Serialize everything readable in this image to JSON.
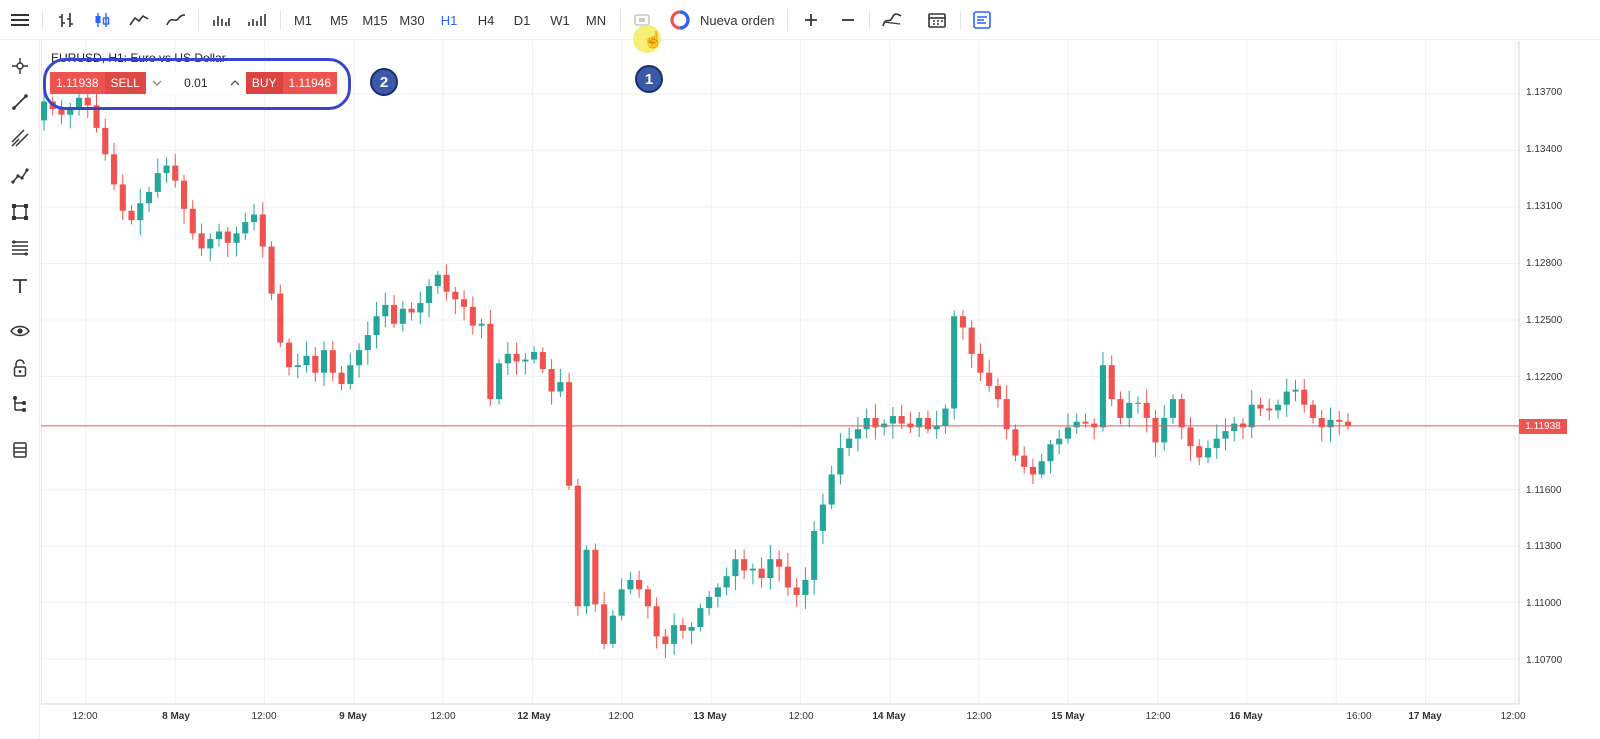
{
  "toolbar": {
    "timeframes": [
      "M1",
      "M5",
      "M15",
      "M30",
      "H1",
      "H4",
      "D1",
      "W1",
      "MN"
    ],
    "active_timeframe": "H1",
    "new_order_label": "Nueva orden"
  },
  "chart": {
    "symbol_title": "EURUSD, H1: Euro vs US Dollar",
    "price_axis": [
      "1.13700",
      "1.13400",
      "1.13100",
      "1.12800",
      "1.12500",
      "1.12200",
      "1.11600",
      "1.11300",
      "1.11000",
      "1.10700"
    ],
    "time_axis": [
      "12:00",
      "8 May",
      "12:00",
      "9 May",
      "12:00",
      "12 May",
      "12:00",
      "13 May",
      "12:00",
      "14 May",
      "12:00",
      "15 May",
      "12:00",
      "16 May",
      "16:00",
      "17 May",
      "12:00"
    ],
    "current_price": "1.11938",
    "colors": {
      "bull": "#26a69a",
      "bear": "#ef5350",
      "grid": "#f2f3f5",
      "accent": "#2962ff"
    }
  },
  "order_panel": {
    "sell_price": "1.11938",
    "sell_label": "SELL",
    "volume": "0.01",
    "buy_label": "BUY",
    "buy_price": "1.11946"
  },
  "annotations": {
    "step_1": "1",
    "step_2": "2"
  },
  "chart_data": {
    "type": "candlestick",
    "title": "EURUSD, H1: Euro vs US Dollar",
    "x_ticks": [
      "12:00",
      "8 May",
      "12:00",
      "9 May",
      "12:00",
      "12 May",
      "12:00",
      "13 May",
      "12:00",
      "14 May",
      "12:00",
      "15 May",
      "12:00",
      "16 May",
      "16:00",
      "17 May",
      "12:00"
    ],
    "y_ticks": [
      1.137,
      1.134,
      1.131,
      1.128,
      1.125,
      1.122,
      1.116,
      1.113,
      1.11,
      1.107
    ],
    "ylim": [
      1.1052,
      1.1388
    ],
    "current_price": 1.11938,
    "grid": true,
    "close_path": [
      1.1366,
      1.1362,
      1.1359,
      1.1363,
      1.1368,
      1.1364,
      1.1352,
      1.1338,
      1.1322,
      1.1308,
      1.1303,
      1.1312,
      1.1318,
      1.1328,
      1.1332,
      1.1324,
      1.1309,
      1.1296,
      1.1288,
      1.1293,
      1.1297,
      1.1291,
      1.1296,
      1.1302,
      1.1306,
      1.1289,
      1.1264,
      1.1238,
      1.1225,
      1.1226,
      1.1231,
      1.1222,
      1.1234,
      1.1222,
      1.1216,
      1.1226,
      1.1234,
      1.1242,
      1.1252,
      1.1258,
      1.1248,
      1.1256,
      1.1254,
      1.1259,
      1.1268,
      1.1274,
      1.1265,
      1.1261,
      1.1257,
      1.1247,
      1.1248,
      1.1208,
      1.1227,
      1.1232,
      1.1228,
      1.1229,
      1.1233,
      1.1224,
      1.1212,
      1.1217,
      1.1162,
      1.1098,
      1.1128,
      1.1099,
      1.1078,
      1.1093,
      1.1107,
      1.1112,
      1.1107,
      1.1098,
      1.1082,
      1.1078,
      1.1088,
      1.1085,
      1.1087,
      1.1097,
      1.1103,
      1.1108,
      1.1114,
      1.1123,
      1.1117,
      1.1118,
      1.1113,
      1.1123,
      1.1119,
      1.1108,
      1.1104,
      1.1112,
      1.1138,
      1.1152,
      1.1168,
      1.1182,
      1.1187,
      1.1192,
      1.1198,
      1.1193,
      1.1195,
      1.1199,
      1.1195,
      1.1193,
      1.1198,
      1.1192,
      1.1194,
      1.1203,
      1.1252,
      1.1246,
      1.1232,
      1.1222,
      1.1215,
      1.1208,
      1.1192,
      1.1178,
      1.1172,
      1.1168,
      1.1175,
      1.1184,
      1.1187,
      1.1193,
      1.1196,
      1.1195,
      1.1193,
      1.1226,
      1.1208,
      1.1198,
      1.1206,
      1.1206,
      1.1198,
      1.1185,
      1.1198,
      1.1208,
      1.1193,
      1.1183,
      1.1177,
      1.1182,
      1.1187,
      1.1191,
      1.1195,
      1.1193,
      1.1205,
      1.1203,
      1.1202,
      1.1205,
      1.1212,
      1.1213,
      1.1205,
      1.1198,
      1.1193,
      1.1197,
      1.1196,
      1.1194
    ]
  }
}
